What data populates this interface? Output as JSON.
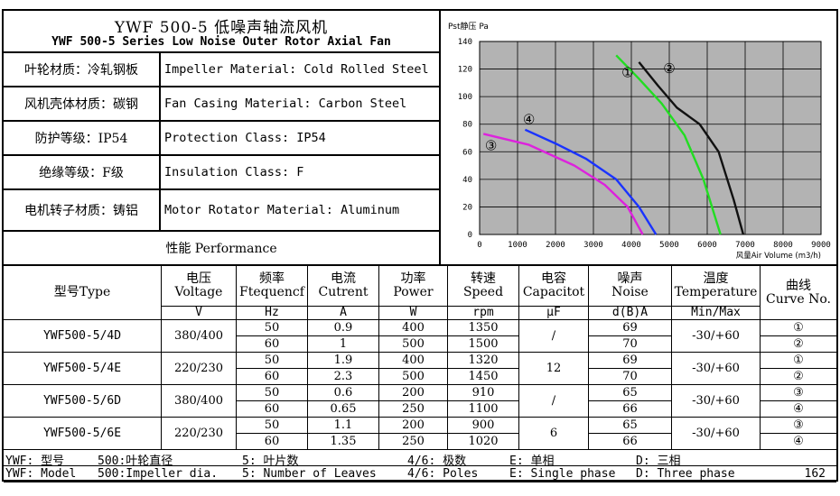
{
  "title": {
    "cn": "YWF 500-5 低噪声轴流风机",
    "en": "YWF 500-5 Series Low Noise Outer Rotor Axial Fan"
  },
  "specs": [
    {
      "cn": "叶轮材质：冷轧钢板",
      "en": "Impeller Material: Cold Rolled Steel"
    },
    {
      "cn": "风机壳体材质：碳钢",
      "en": "Fan Casing Material: Carbon Steel"
    },
    {
      "cn": "防护等级：IP54",
      "en": "Protection Class: IP54"
    },
    {
      "cn": "绝缘等级：F级",
      "en": "Insulation Class: F"
    },
    {
      "cn": "电机转子材质：铸铝",
      "en": "Motor Rotator Material: Aluminum"
    }
  ],
  "performance_label": "性能  Performance",
  "chart_data": {
    "type": "line",
    "ylabel": "Pst静压 Pa",
    "xlabel": "风量Air Volume (m3/h)",
    "xlim": [
      0,
      9000
    ],
    "ylim": [
      0,
      140
    ],
    "xticks": [
      0,
      1000,
      2000,
      3000,
      4000,
      5000,
      6000,
      7000,
      8000,
      9000
    ],
    "yticks": [
      0,
      20,
      40,
      60,
      80,
      100,
      120,
      140
    ],
    "grid": true,
    "series": [
      {
        "name": "①",
        "color": "#22dd22",
        "x": [
          3600,
          4200,
          4800,
          5400,
          5900,
          6350
        ],
        "y": [
          130,
          113,
          95,
          72,
          40,
          0
        ]
      },
      {
        "name": "②",
        "color": "#111111",
        "x": [
          4200,
          4700,
          5200,
          5800,
          6300,
          6700,
          6950
        ],
        "y": [
          125,
          108,
          92,
          80,
          60,
          25,
          0
        ]
      },
      {
        "name": "③",
        "color": "#dd22dd",
        "x": [
          100,
          1300,
          2500,
          3300,
          3900,
          4300
        ],
        "y": [
          73,
          65,
          50,
          36,
          20,
          0
        ]
      },
      {
        "name": "④",
        "color": "#1a33ff",
        "x": [
          1200,
          2000,
          2800,
          3600,
          4200,
          4650
        ],
        "y": [
          76,
          66,
          55,
          40,
          20,
          0
        ]
      }
    ],
    "labels": [
      {
        "text": "①",
        "x": 3900,
        "y": 118
      },
      {
        "text": "②",
        "x": 5000,
        "y": 121
      },
      {
        "text": "③",
        "x": 300,
        "y": 65
      },
      {
        "text": "④",
        "x": 1300,
        "y": 84
      }
    ]
  },
  "table": {
    "headers": [
      {
        "cn": "型号Type",
        "en": "",
        "unit": ""
      },
      {
        "cn": "电压",
        "en": "Voltage",
        "unit": "V"
      },
      {
        "cn": "频率",
        "en": "Ftequencf",
        "unit": "Hz"
      },
      {
        "cn": "电流",
        "en": "Cutrent",
        "unit": "A"
      },
      {
        "cn": "功率",
        "en": "Power",
        "unit": "W"
      },
      {
        "cn": "转速",
        "en": "Speed",
        "unit": "rpm"
      },
      {
        "cn": "电容",
        "en": "Capacitot",
        "unit": "μF"
      },
      {
        "cn": "噪声",
        "en": "Noise",
        "unit": "d(B)A"
      },
      {
        "cn": "温度",
        "en": "Temperature",
        "unit": "Min/Max"
      },
      {
        "cn": "曲线",
        "en": "Curve No.",
        "unit": ""
      }
    ],
    "rows": [
      {
        "type": "YWF500-5/4D",
        "voltage": "380/400",
        "capacitor": "/",
        "temp": "-30/+60",
        "sub": [
          {
            "freq": "50",
            "current": "0.9",
            "power": "400",
            "speed": "1350",
            "noise": "69",
            "curve": "①"
          },
          {
            "freq": "60",
            "current": "1",
            "power": "500",
            "speed": "1500",
            "noise": "70",
            "curve": "②"
          }
        ]
      },
      {
        "type": "YWF500-5/4E",
        "voltage": "220/230",
        "capacitor": "12",
        "temp": "-30/+60",
        "sub": [
          {
            "freq": "50",
            "current": "1.9",
            "power": "400",
            "speed": "1320",
            "noise": "69",
            "curve": "①"
          },
          {
            "freq": "60",
            "current": "2.3",
            "power": "500",
            "speed": "1450",
            "noise": "70",
            "curve": "②"
          }
        ]
      },
      {
        "type": "YWF500-5/6D",
        "voltage": "380/400",
        "capacitor": "/",
        "temp": "-30/+60",
        "sub": [
          {
            "freq": "50",
            "current": "0.6",
            "power": "200",
            "speed": "910",
            "noise": "65",
            "curve": "③"
          },
          {
            "freq": "60",
            "current": "0.65",
            "power": "250",
            "speed": "1100",
            "noise": "66",
            "curve": "④"
          }
        ]
      },
      {
        "type": "YWF500-5/6E",
        "voltage": "220/230",
        "capacitor": "6",
        "temp": "-30/+60",
        "sub": [
          {
            "freq": "50",
            "current": "1.1",
            "power": "200",
            "speed": "900",
            "noise": "65",
            "curve": "③"
          },
          {
            "freq": "60",
            "current": "1.35",
            "power": "250",
            "speed": "1020",
            "noise": "66",
            "curve": "④"
          }
        ]
      }
    ]
  },
  "footer": {
    "cn": [
      "YWF: 型号",
      "500:叶轮直径",
      "5: 叶片数",
      "4/6: 极数",
      "E: 单相",
      "D: 三相"
    ],
    "en": [
      "YWF: Model",
      "500:Impeller dia.",
      "5: Number of Leaves",
      "4/6: Poles",
      "E: Single phase",
      "D: Three phase"
    ],
    "page": "162"
  }
}
